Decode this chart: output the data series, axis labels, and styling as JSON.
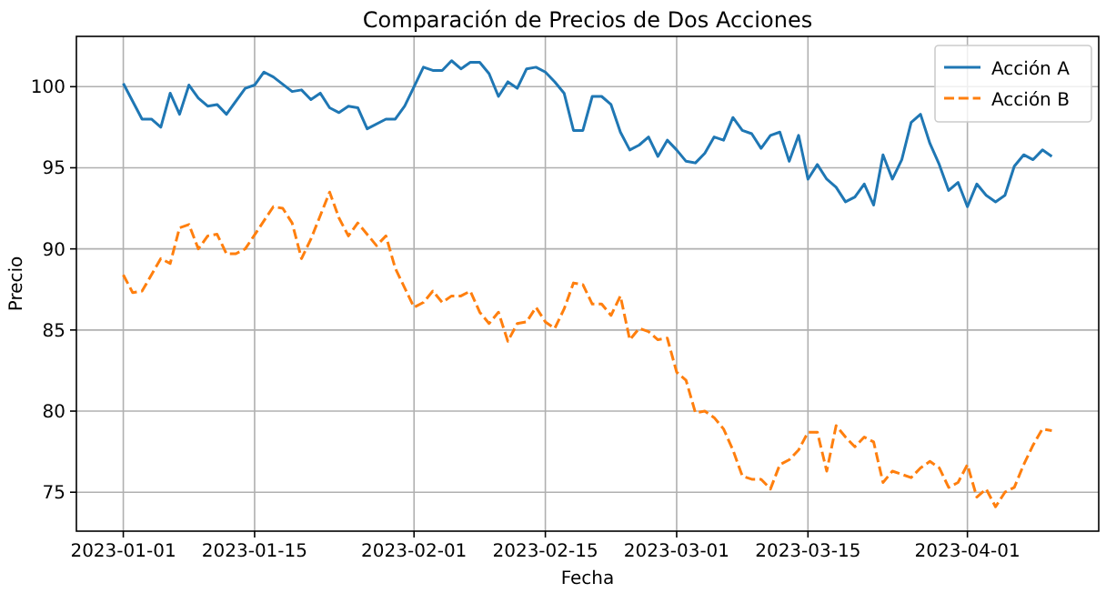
{
  "chart_data": {
    "type": "line",
    "title": "Comparación de Precios de Dos Acciones",
    "xlabel": "Fecha",
    "ylabel": "Precio",
    "xlim": [
      "2022-12-27",
      "2023-04-15"
    ],
    "xticks": [
      {
        "value": "2023-01-01",
        "label": "2023-01-01"
      },
      {
        "value": "2023-01-15",
        "label": "2023-01-15"
      },
      {
        "value": "2023-02-01",
        "label": "2023-02-01"
      },
      {
        "value": "2023-02-15",
        "label": "2023-02-15"
      },
      {
        "value": "2023-03-01",
        "label": "2023-03-01"
      },
      {
        "value": "2023-03-15",
        "label": "2023-03-15"
      },
      {
        "value": "2023-04-01",
        "label": "2023-04-01"
      }
    ],
    "ylim": [
      72.6,
      103.1
    ],
    "yticks": [
      75,
      80,
      85,
      90,
      95,
      100
    ],
    "grid": true,
    "legend": "top right",
    "series": [
      {
        "name": "Acción A",
        "color": "#1f77b4",
        "line_style": "solid",
        "x": [
          "2023-01-01",
          "2023-01-03",
          "2023-01-04",
          "2023-01-05",
          "2023-01-06",
          "2023-01-07",
          "2023-01-08",
          "2023-01-09",
          "2023-01-10",
          "2023-01-11",
          "2023-01-12",
          "2023-01-14",
          "2023-01-15",
          "2023-01-16",
          "2023-01-17",
          "2023-01-19",
          "2023-01-20",
          "2023-01-21",
          "2023-01-22",
          "2023-01-23",
          "2023-01-24",
          "2023-01-25",
          "2023-01-26",
          "2023-01-27",
          "2023-01-29",
          "2023-01-30",
          "2023-01-31",
          "2023-02-01",
          "2023-02-02",
          "2023-02-03",
          "2023-02-04",
          "2023-02-05",
          "2023-02-06",
          "2023-02-07",
          "2023-02-08",
          "2023-02-09",
          "2023-02-10",
          "2023-02-11",
          "2023-02-12",
          "2023-02-13",
          "2023-02-14",
          "2023-02-15",
          "2023-02-16",
          "2023-02-17",
          "2023-02-18",
          "2023-02-19",
          "2023-02-20",
          "2023-02-21",
          "2023-02-22",
          "2023-02-23",
          "2023-02-24",
          "2023-02-25",
          "2023-02-26",
          "2023-02-27",
          "2023-02-28",
          "2023-03-01",
          "2023-03-02",
          "2023-03-03",
          "2023-03-04",
          "2023-03-05",
          "2023-03-06",
          "2023-03-07",
          "2023-03-08",
          "2023-03-09",
          "2023-03-10",
          "2023-03-11",
          "2023-03-12",
          "2023-03-13",
          "2023-03-14",
          "2023-03-15",
          "2023-03-16",
          "2023-03-17",
          "2023-03-18",
          "2023-03-19",
          "2023-03-20",
          "2023-03-21",
          "2023-03-22",
          "2023-03-23",
          "2023-03-24",
          "2023-03-25",
          "2023-03-26",
          "2023-03-27",
          "2023-03-28",
          "2023-03-29",
          "2023-03-30",
          "2023-03-31",
          "2023-04-01",
          "2023-04-02",
          "2023-04-03",
          "2023-04-04",
          "2023-04-05",
          "2023-04-06",
          "2023-04-07",
          "2023-04-08",
          "2023-04-09",
          "2023-04-10"
        ],
        "values": [
          100.2,
          98.0,
          98.0,
          97.5,
          99.6,
          98.3,
          100.1,
          99.3,
          98.8,
          98.9,
          98.3,
          99.9,
          100.1,
          100.9,
          100.6,
          99.7,
          99.8,
          99.2,
          99.6,
          98.7,
          98.4,
          98.8,
          98.7,
          97.4,
          98.0,
          98.0,
          98.8,
          100.0,
          101.2,
          101.0,
          101.0,
          101.6,
          101.1,
          101.5,
          101.5,
          100.8,
          99.4,
          100.3,
          99.9,
          101.1,
          101.2,
          100.9,
          100.3,
          99.6,
          97.3,
          97.3,
          99.4,
          99.4,
          98.9,
          97.2,
          96.1,
          96.4,
          96.9,
          95.7,
          96.7,
          96.1,
          95.4,
          95.3,
          95.9,
          96.9,
          96.7,
          98.1,
          97.3,
          97.1,
          96.2,
          97.0,
          97.2,
          95.4,
          97.0,
          94.3,
          95.2,
          94.3,
          93.8,
          92.9,
          93.2,
          94.0,
          92.7,
          95.8,
          94.3,
          95.5,
          97.8,
          98.3,
          96.5,
          95.2,
          93.6,
          94.1,
          92.6,
          94.0,
          93.3,
          92.9,
          93.3,
          95.1,
          95.8,
          95.5,
          96.1,
          95.7
        ]
      },
      {
        "name": "Acción B",
        "color": "#ff7f0e",
        "line_style": "dashed",
        "x": [
          "2023-01-01",
          "2023-01-02",
          "2023-01-03",
          "2023-01-05",
          "2023-01-06",
          "2023-01-07",
          "2023-01-08",
          "2023-01-09",
          "2023-01-10",
          "2023-01-11",
          "2023-01-12",
          "2023-01-13",
          "2023-01-14",
          "2023-01-17",
          "2023-01-18",
          "2023-01-19",
          "2023-01-20",
          "2023-01-21",
          "2023-01-23",
          "2023-01-24",
          "2023-01-25",
          "2023-01-26",
          "2023-01-28",
          "2023-01-29",
          "2023-01-30",
          "2023-02-01",
          "2023-02-02",
          "2023-02-03",
          "2023-02-04",
          "2023-02-05",
          "2023-02-06",
          "2023-02-07",
          "2023-02-08",
          "2023-02-09",
          "2023-02-10",
          "2023-02-11",
          "2023-02-12",
          "2023-02-13",
          "2023-02-14",
          "2023-02-15",
          "2023-02-16",
          "2023-02-17",
          "2023-02-18",
          "2023-02-19",
          "2023-02-20",
          "2023-02-21",
          "2023-02-22",
          "2023-02-23",
          "2023-02-24",
          "2023-02-25",
          "2023-02-26",
          "2023-02-27",
          "2023-02-28",
          "2023-03-01",
          "2023-03-02",
          "2023-03-03",
          "2023-03-04",
          "2023-03-05",
          "2023-03-06",
          "2023-03-07",
          "2023-03-08",
          "2023-03-09",
          "2023-03-10",
          "2023-03-11",
          "2023-03-12",
          "2023-03-13",
          "2023-03-14",
          "2023-03-15",
          "2023-03-16",
          "2023-03-17",
          "2023-03-18",
          "2023-03-19",
          "2023-03-20",
          "2023-03-21",
          "2023-03-22",
          "2023-03-23",
          "2023-03-24",
          "2023-03-25",
          "2023-03-26",
          "2023-03-27",
          "2023-03-28",
          "2023-03-29",
          "2023-03-30",
          "2023-03-31",
          "2023-04-01",
          "2023-04-02",
          "2023-04-03",
          "2023-04-04",
          "2023-04-05",
          "2023-04-06",
          "2023-04-07",
          "2023-04-08",
          "2023-04-09",
          "2023-04-10"
        ],
        "values": [
          88.4,
          87.3,
          87.4,
          89.4,
          89.1,
          91.3,
          91.5,
          90.0,
          90.8,
          90.9,
          89.7,
          89.7,
          90.0,
          92.6,
          92.5,
          91.6,
          89.4,
          90.6,
          93.5,
          91.9,
          90.8,
          91.6,
          90.2,
          90.8,
          88.8,
          86.4,
          86.7,
          87.4,
          86.7,
          87.1,
          87.1,
          87.4,
          86.1,
          85.4,
          86.1,
          84.3,
          85.4,
          85.5,
          86.4,
          85.5,
          85.1,
          86.3,
          87.9,
          87.8,
          86.6,
          86.6,
          85.9,
          87.1,
          84.4,
          85.1,
          84.9,
          84.4,
          84.5,
          82.4,
          81.9,
          79.9,
          80.0,
          79.6,
          78.9,
          77.6,
          76.0,
          75.8,
          75.8,
          75.2,
          76.7,
          77.0,
          77.6,
          78.7,
          78.7,
          76.3,
          79.1,
          78.4,
          77.8,
          78.4,
          78.1,
          75.6,
          76.3,
          76.1,
          75.9,
          76.5,
          76.9,
          76.5,
          75.3,
          75.6,
          76.7,
          74.7,
          75.2,
          74.1,
          75.0,
          75.3,
          76.7,
          77.9,
          78.9,
          78.8
        ]
      }
    ]
  }
}
